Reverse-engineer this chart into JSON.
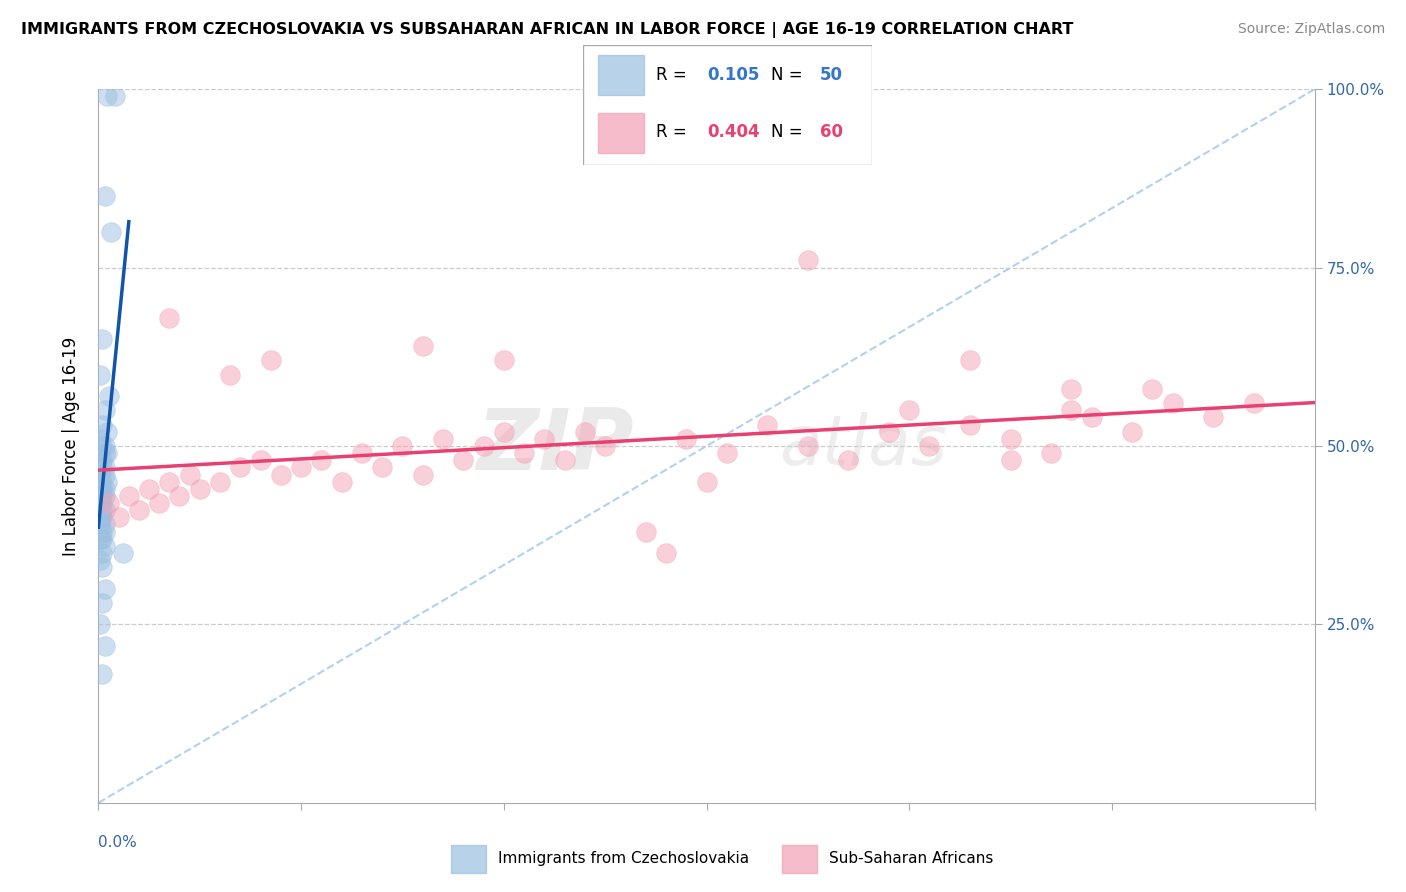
{
  "title": "IMMIGRANTS FROM CZECHOSLOVAKIA VS SUBSAHARAN AFRICAN IN LABOR FORCE | AGE 16-19 CORRELATION CHART",
  "source": "Source: ZipAtlas.com",
  "ylabel": "In Labor Force | Age 16-19",
  "xlim": [
    0.0,
    0.6
  ],
  "ylim": [
    0.0,
    1.0
  ],
  "legend_r1": "0.105",
  "legend_n1": "50",
  "legend_r2": "0.404",
  "legend_n2": "60",
  "blue_color": "#9BBFE0",
  "pink_color": "#F4A0B5",
  "blue_line_color": "#1155AA",
  "pink_line_color": "#E84070",
  "blue_r_color": "#3377CC",
  "pink_r_color": "#E84070",
  "ref_line_color": "#AACCEE",
  "grid_color": "#CCCCCC",
  "watermark_zip": "ZIP",
  "watermark_atlas": "atlas",
  "blue_x": [
    0.004,
    0.008,
    0.003,
    0.006,
    0.002,
    0.001,
    0.005,
    0.003,
    0.002,
    0.004,
    0.001,
    0.003,
    0.002,
    0.004,
    0.003,
    0.002,
    0.001,
    0.003,
    0.002,
    0.001,
    0.003,
    0.002,
    0.004,
    0.003,
    0.002,
    0.001,
    0.003,
    0.002,
    0.001,
    0.002,
    0.003,
    0.002,
    0.001,
    0.002,
    0.003,
    0.001,
    0.002,
    0.003,
    0.001,
    0.002,
    0.003,
    0.002,
    0.001,
    0.002,
    0.003,
    0.002,
    0.001,
    0.003,
    0.002,
    0.012
  ],
  "blue_y": [
    0.99,
    0.99,
    0.85,
    0.8,
    0.65,
    0.6,
    0.57,
    0.55,
    0.53,
    0.52,
    0.51,
    0.5,
    0.5,
    0.49,
    0.49,
    0.48,
    0.48,
    0.47,
    0.47,
    0.46,
    0.46,
    0.45,
    0.45,
    0.44,
    0.44,
    0.44,
    0.43,
    0.43,
    0.42,
    0.42,
    0.41,
    0.41,
    0.4,
    0.4,
    0.39,
    0.39,
    0.38,
    0.38,
    0.37,
    0.37,
    0.36,
    0.35,
    0.34,
    0.33,
    0.3,
    0.28,
    0.25,
    0.22,
    0.18,
    0.35
  ],
  "pink_x": [
    0.005,
    0.01,
    0.015,
    0.02,
    0.025,
    0.03,
    0.035,
    0.04,
    0.045,
    0.05,
    0.06,
    0.07,
    0.08,
    0.09,
    0.1,
    0.11,
    0.12,
    0.13,
    0.14,
    0.15,
    0.16,
    0.17,
    0.18,
    0.19,
    0.2,
    0.21,
    0.22,
    0.23,
    0.24,
    0.25,
    0.27,
    0.29,
    0.31,
    0.33,
    0.35,
    0.37,
    0.39,
    0.41,
    0.43,
    0.45,
    0.47,
    0.49,
    0.51,
    0.53,
    0.55,
    0.57,
    0.3,
    0.4,
    0.52,
    0.48,
    0.035,
    0.065,
    0.085,
    0.16,
    0.2,
    0.35,
    0.43,
    0.48,
    0.28,
    0.45
  ],
  "pink_y": [
    0.42,
    0.4,
    0.43,
    0.41,
    0.44,
    0.42,
    0.45,
    0.43,
    0.46,
    0.44,
    0.45,
    0.47,
    0.48,
    0.46,
    0.47,
    0.48,
    0.45,
    0.49,
    0.47,
    0.5,
    0.46,
    0.51,
    0.48,
    0.5,
    0.52,
    0.49,
    0.51,
    0.48,
    0.52,
    0.5,
    0.38,
    0.51,
    0.49,
    0.53,
    0.5,
    0.48,
    0.52,
    0.5,
    0.53,
    0.51,
    0.49,
    0.54,
    0.52,
    0.56,
    0.54,
    0.56,
    0.45,
    0.55,
    0.58,
    0.55,
    0.68,
    0.6,
    0.62,
    0.64,
    0.62,
    0.76,
    0.62,
    0.58,
    0.35,
    0.48
  ]
}
